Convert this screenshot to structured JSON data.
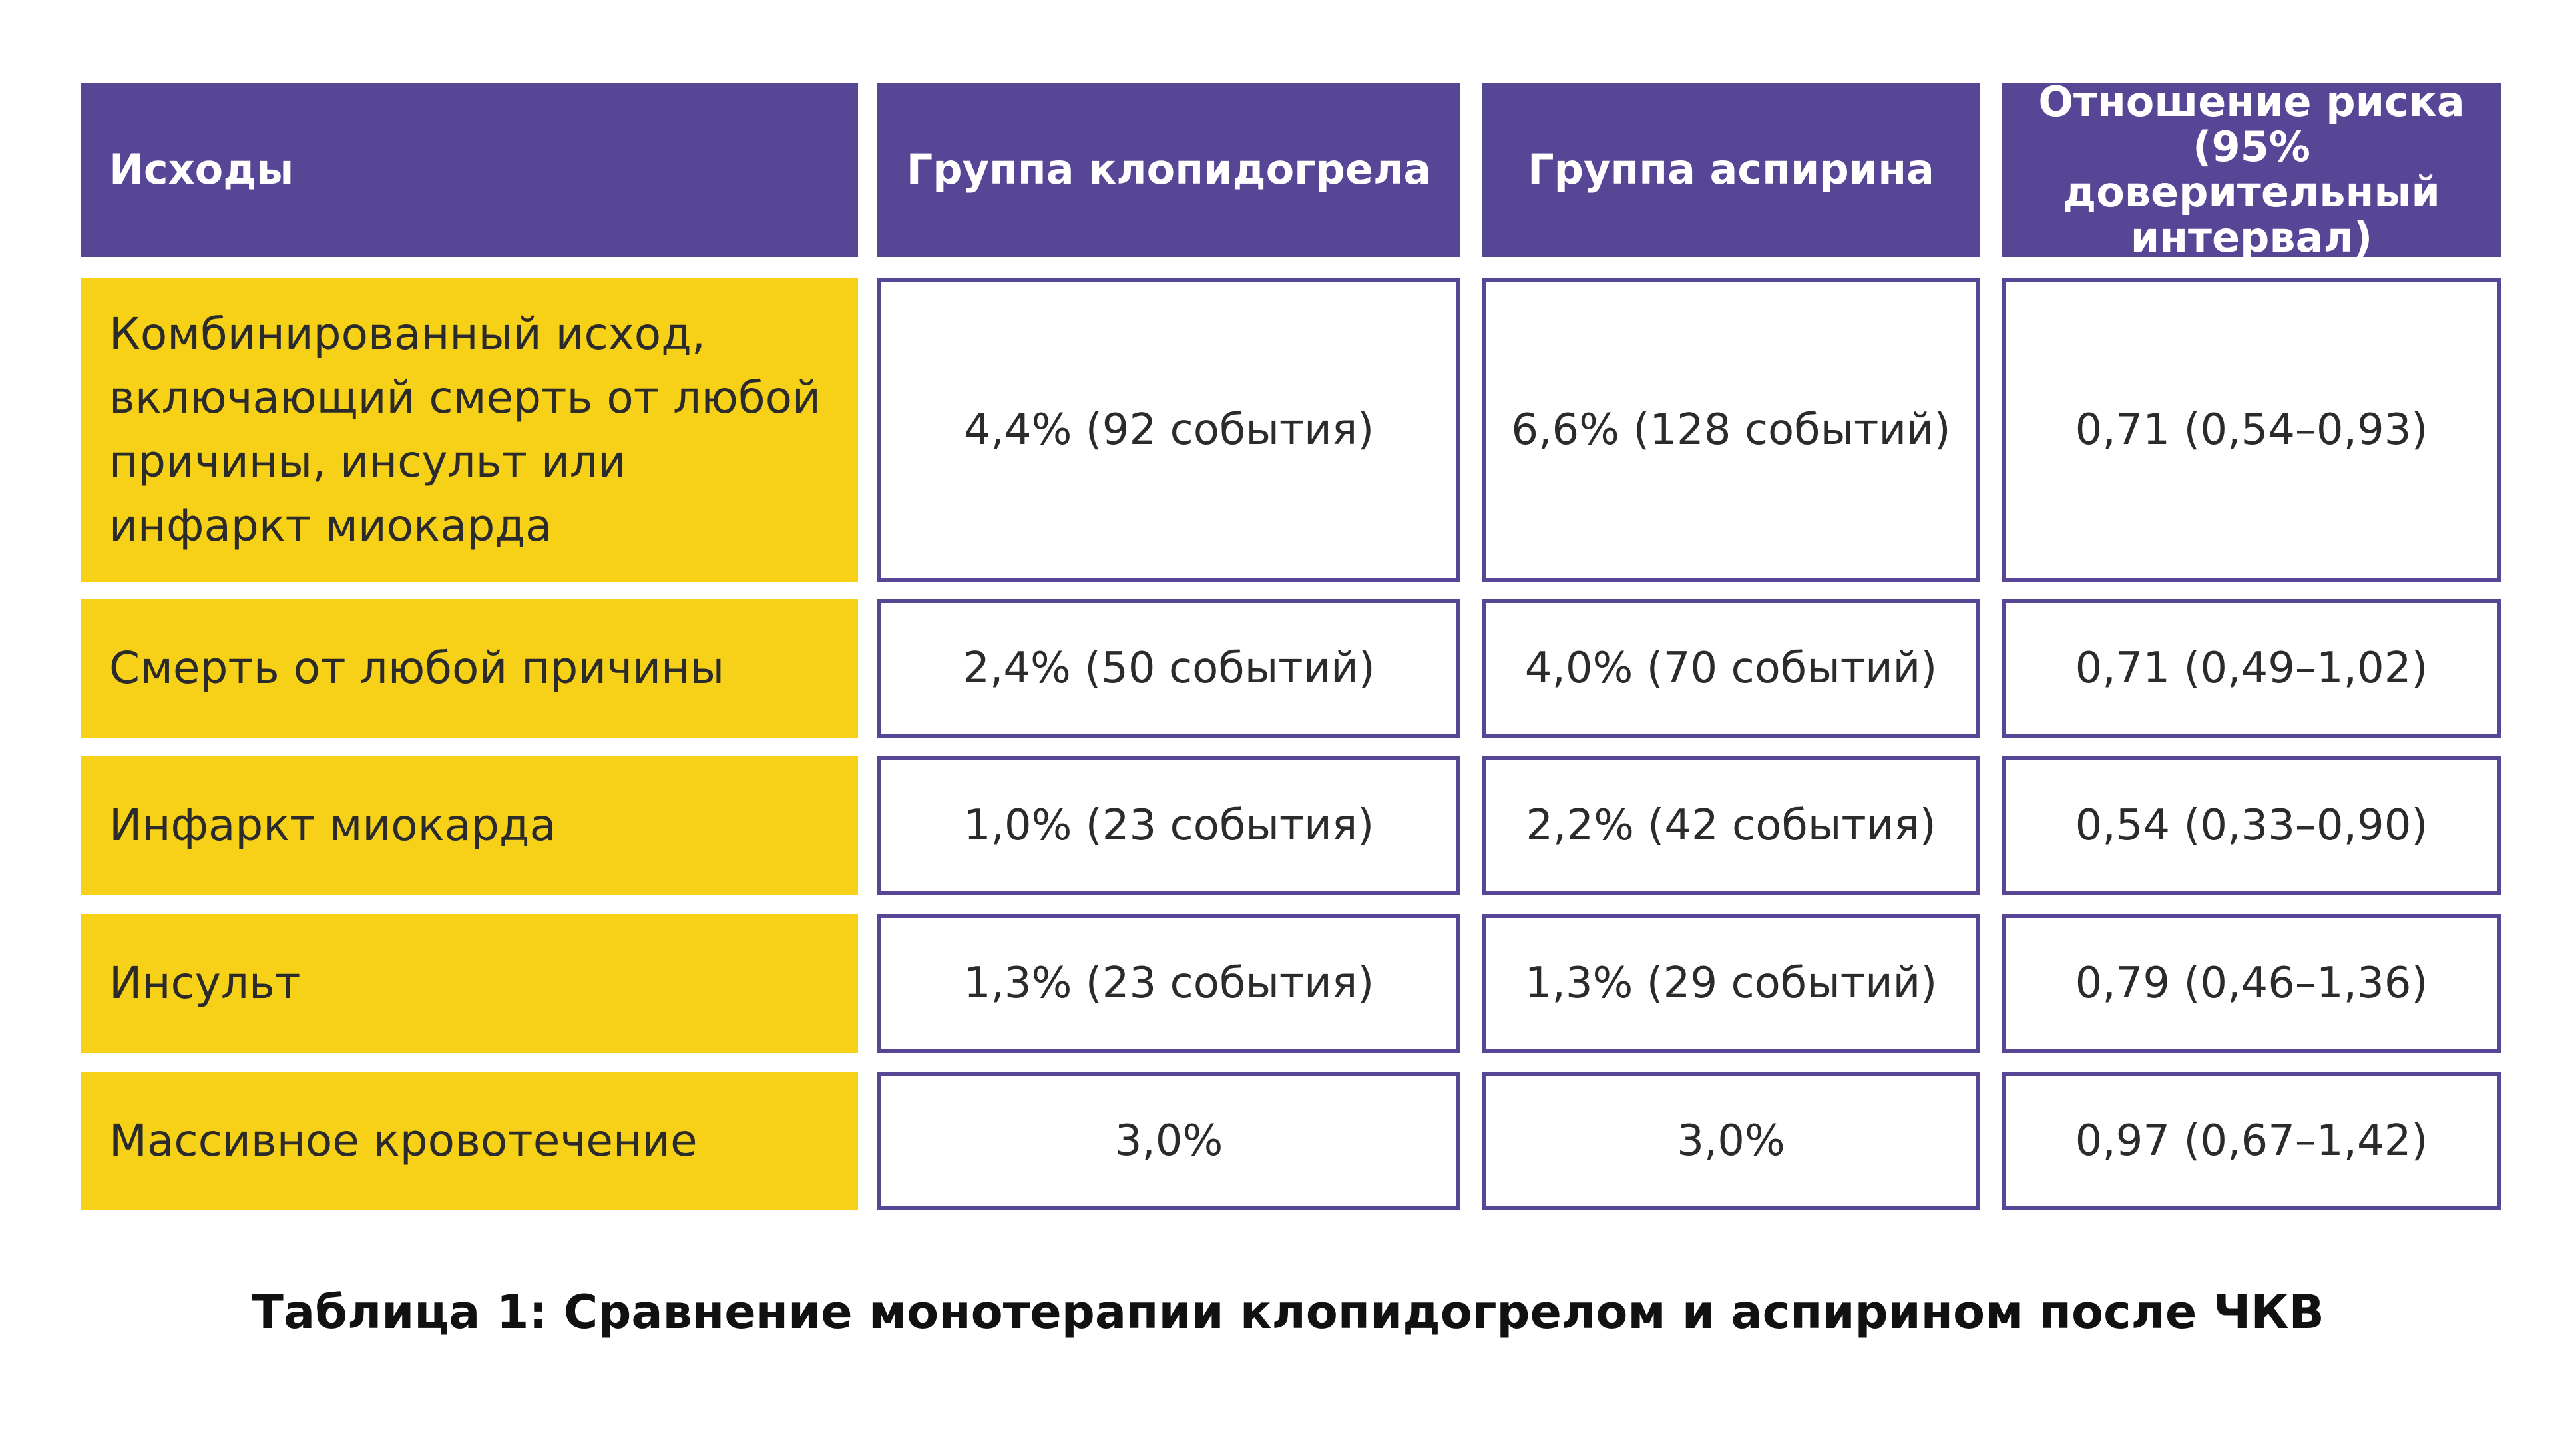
{
  "table": {
    "headers": [
      "Исходы",
      "Группа клопидогрела",
      "Группа аспирина",
      "Отношение риска (95% доверительный интервал)"
    ],
    "rows": [
      {
        "outcome": "Комбинированный исход, включающий смерть от любой причины, инсульт или инфаркт миокарда",
        "clopidogrel": "4,4% (92 события)",
        "aspirin": "6,6% (128 событий)",
        "risk_ratio": "0,71 (0,54–0,93)"
      },
      {
        "outcome": "Смерть от любой причины",
        "clopidogrel": "2,4% (50 событий)",
        "aspirin": "4,0% (70 событий)",
        "risk_ratio": "0,71 (0,49–1,02)"
      },
      {
        "outcome": "Инфаркт миокарда",
        "clopidogrel": "1,0% (23 события)",
        "aspirin": "2,2% (42 события)",
        "risk_ratio": "0,54 (0,33–0,90)"
      },
      {
        "outcome": "Инсульт",
        "clopidogrel": "1,3% (23 события)",
        "aspirin": "1,3% (29 событий)",
        "risk_ratio": "0,79 (0,46–1,36)"
      },
      {
        "outcome": "Массивное кровотечение",
        "clopidogrel": "3,0%",
        "aspirin": "3,0%",
        "risk_ratio": "0,97 (0,67–1,42)"
      }
    ]
  },
  "caption": "Таблица 1: Сравнение монотерапии клопидогрелом и аспирином после ЧКВ",
  "colors": {
    "header_bg": "#574596",
    "label_bg": "#f7d117",
    "border": "#574596"
  }
}
